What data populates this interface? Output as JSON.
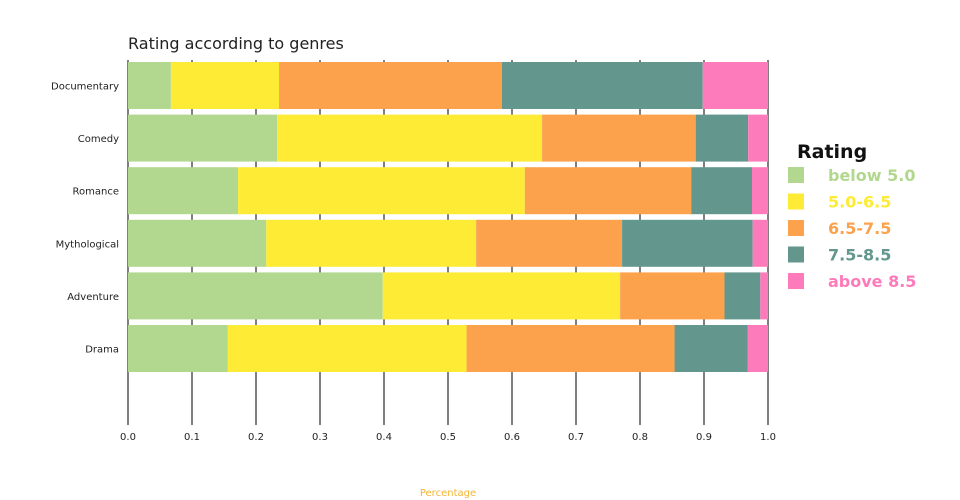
{
  "chart_data": {
    "type": "bar",
    "orientation": "horizontal",
    "stacked": true,
    "title": "Rating according to genres",
    "xlabel": "Percentage",
    "ylabel": "",
    "xlim": [
      0,
      1
    ],
    "x_ticks": [
      "0.0",
      "0.1",
      "0.2",
      "0.3",
      "0.4",
      "0.5",
      "0.6",
      "0.7",
      "0.8",
      "0.9",
      "1.0"
    ],
    "grid": "vertical",
    "legend_placement": "right",
    "categories": [
      "Documentary",
      "Comedy",
      "Romance",
      "Mythological",
      "Adventure",
      "Drama"
    ],
    "legend_title": "Rating",
    "series": [
      {
        "name": "below 5.0",
        "color": "#b2d78f",
        "values": [
          0.067,
          0.233,
          0.172,
          0.216,
          0.398,
          0.156
        ]
      },
      {
        "name": "5.0-6.5",
        "color": "#fdeb35",
        "values": [
          0.169,
          0.414,
          0.448,
          0.328,
          0.371,
          0.373
        ]
      },
      {
        "name": "6.5-7.5",
        "color": "#fca24c",
        "values": [
          0.348,
          0.24,
          0.26,
          0.228,
          0.163,
          0.325
        ]
      },
      {
        "name": "7.5-8.5",
        "color": "#63978d",
        "values": [
          0.314,
          0.082,
          0.095,
          0.204,
          0.056,
          0.114
        ]
      },
      {
        "name": "above 8.5",
        "color": "#fe7bbb",
        "values": [
          0.102,
          0.031,
          0.025,
          0.024,
          0.012,
          0.032
        ]
      }
    ],
    "xlabel_color": "#f5b532",
    "grid_color": "#000000"
  }
}
